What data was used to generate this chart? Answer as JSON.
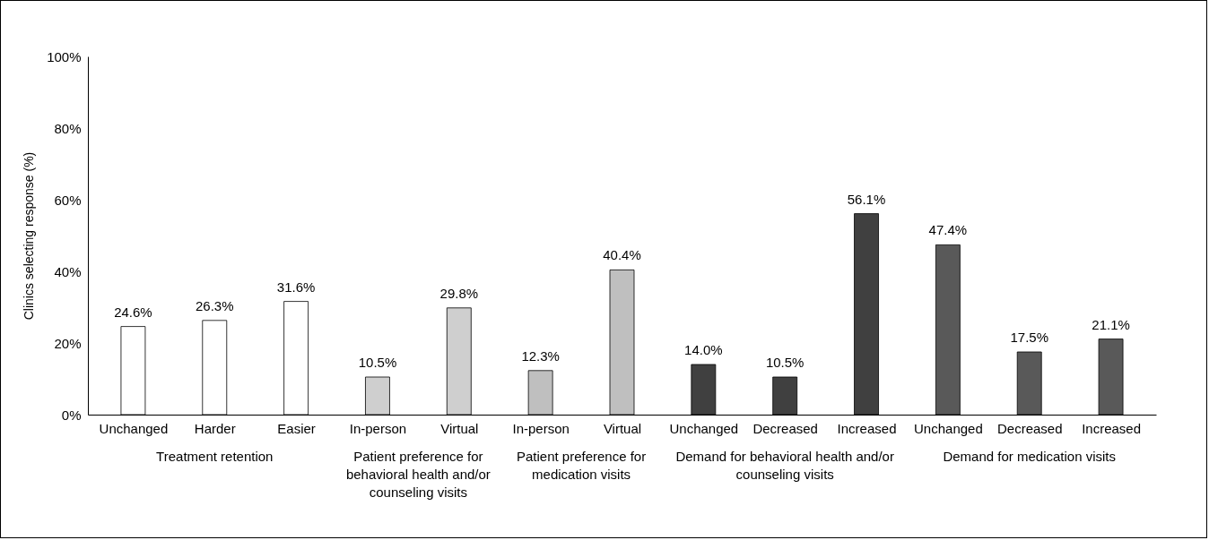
{
  "chart_data": {
    "type": "bar",
    "ylabel": "Clinics selecting response (%)",
    "categories": [
      "Unchanged",
      "Harder",
      "Easier",
      "In-person",
      "Virtual",
      "In-person",
      "Virtual",
      "Unchanged",
      "Decreased",
      "Increased",
      "Unchanged",
      "Decreased",
      "Increased"
    ],
    "series": [
      {
        "name": "Treatment retention",
        "color": "#ffffff",
        "values": [
          24.6,
          26.3,
          31.6,
          null,
          null,
          null,
          null,
          null,
          null,
          null,
          null,
          null,
          null
        ],
        "value_labels": [
          "24.6%",
          "26.3%",
          "31.6%",
          null,
          null,
          null,
          null,
          null,
          null,
          null,
          null,
          null,
          null
        ]
      },
      {
        "name": "Patient preference for behavioral health and/or counseling visits",
        "color": "#cfcfcf",
        "values": [
          null,
          null,
          null,
          10.5,
          29.8,
          null,
          null,
          null,
          null,
          null,
          null,
          null,
          null
        ],
        "value_labels": [
          null,
          null,
          null,
          "10.5%",
          "29.8%",
          null,
          null,
          null,
          null,
          null,
          null,
          null,
          null
        ]
      },
      {
        "name": "Patient preference for medication visits",
        "color": "#bfbfbf",
        "values": [
          null,
          null,
          null,
          null,
          null,
          12.3,
          40.4,
          null,
          null,
          null,
          null,
          null,
          null
        ],
        "value_labels": [
          null,
          null,
          null,
          null,
          null,
          "12.3%",
          "40.4%",
          null,
          null,
          null,
          null,
          null,
          null
        ]
      },
      {
        "name": "Demand for behavioral health and/or counseling visits",
        "color": "#404040",
        "values": [
          null,
          null,
          null,
          null,
          null,
          null,
          null,
          14.0,
          10.5,
          56.1,
          null,
          null,
          null
        ],
        "value_labels": [
          null,
          null,
          null,
          null,
          null,
          null,
          null,
          "14.0%",
          "10.5%",
          "56.1%",
          null,
          null,
          null
        ]
      },
      {
        "name": "Demand for medication visits",
        "color": "#595959",
        "values": [
          null,
          null,
          null,
          null,
          null,
          null,
          null,
          null,
          null,
          null,
          47.4,
          17.5,
          21.1
        ],
        "value_labels": [
          null,
          null,
          null,
          null,
          null,
          null,
          null,
          null,
          null,
          null,
          "47.4%",
          "17.5%",
          "21.1%"
        ]
      }
    ],
    "ylim": [
      0,
      100
    ],
    "yticks": [
      {
        "value": 0,
        "label": "0%"
      },
      {
        "value": 20,
        "label": "20%"
      },
      {
        "value": 40,
        "label": "40%"
      },
      {
        "value": 60,
        "label": "60%"
      },
      {
        "value": 80,
        "label": "80%"
      },
      {
        "value": 100,
        "label": "100%"
      }
    ],
    "grid": false,
    "legend": false
  }
}
